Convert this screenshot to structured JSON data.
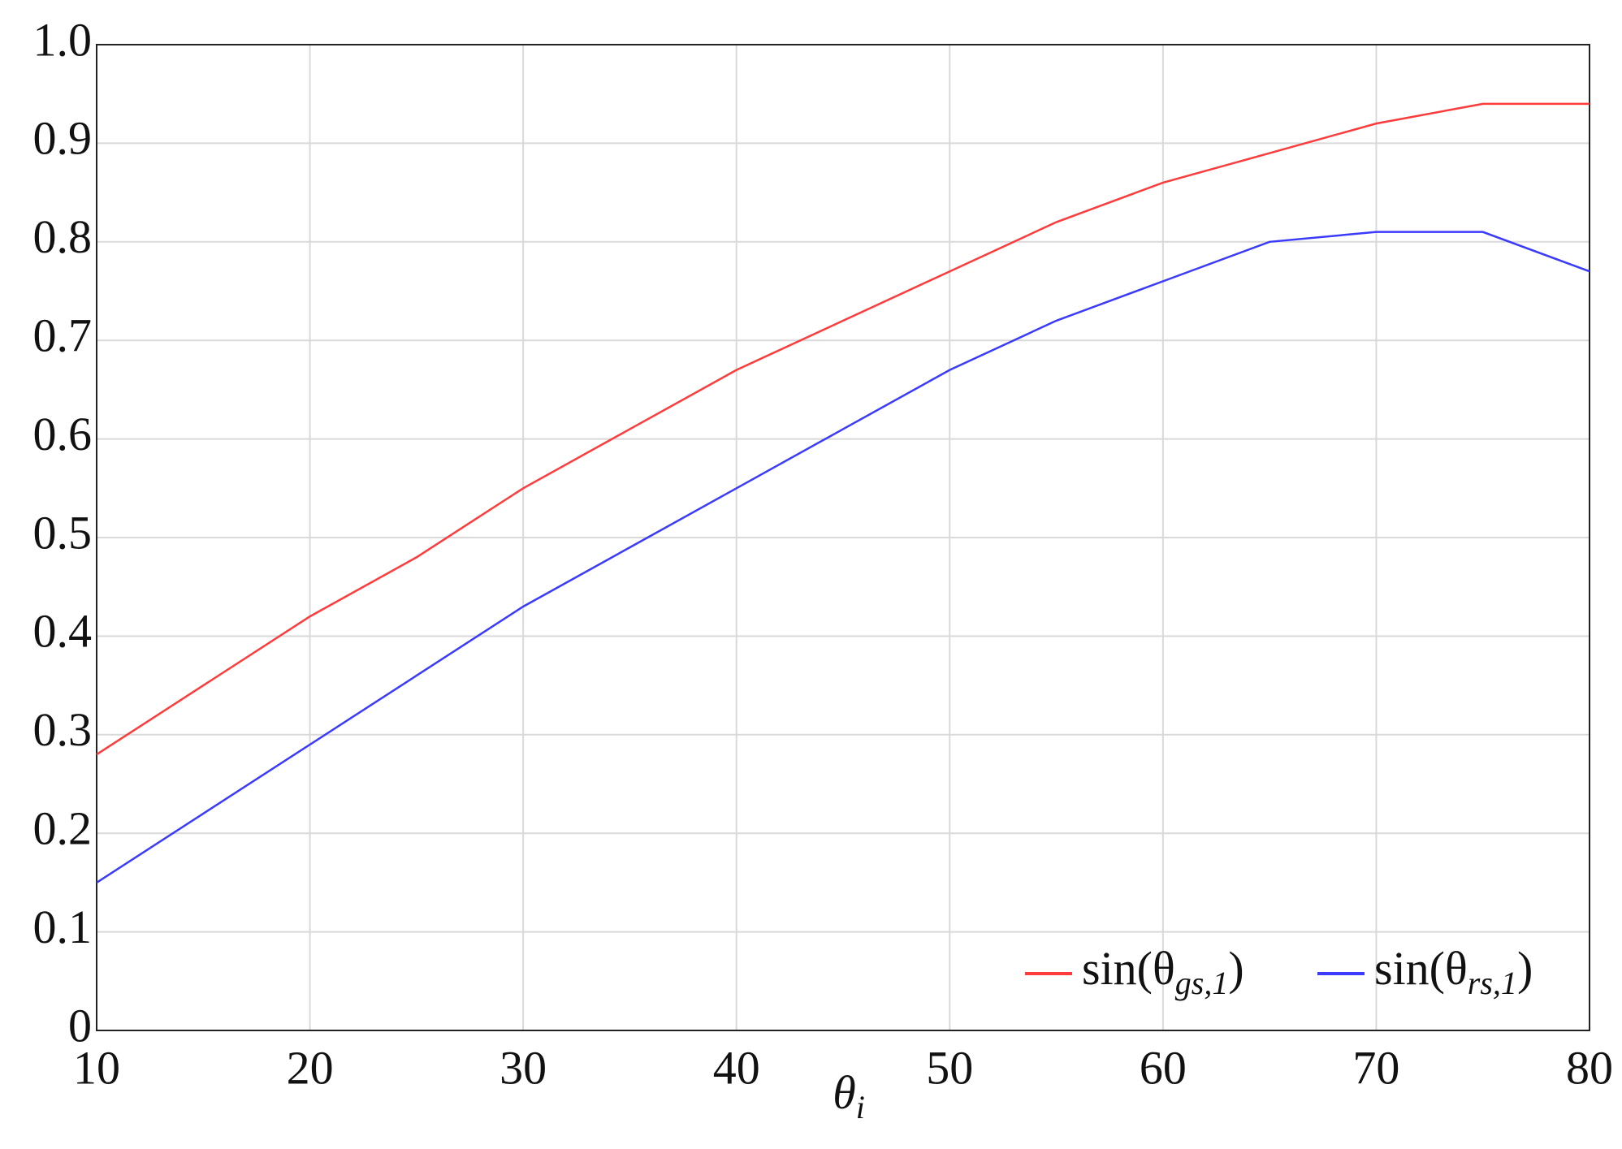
{
  "chart_data": {
    "type": "line",
    "x_label": "θi",
    "x": [
      10,
      15,
      20,
      25,
      30,
      35,
      40,
      45,
      50,
      55,
      60,
      65,
      70,
      75,
      80
    ],
    "series": [
      {
        "name": "sin(θgs,1)",
        "color": "#ff3b3b",
        "values": [
          0.28,
          0.35,
          0.42,
          0.48,
          0.55,
          0.61,
          0.67,
          0.72,
          0.77,
          0.82,
          0.86,
          0.89,
          0.92,
          0.94,
          0.94
        ]
      },
      {
        "name": "sin(θrs,1)",
        "color": "#3b3bff",
        "values": [
          0.15,
          0.22,
          0.29,
          0.36,
          0.43,
          0.49,
          0.55,
          0.61,
          0.67,
          0.72,
          0.76,
          0.8,
          0.81,
          0.81,
          0.77
        ]
      }
    ],
    "xlim": [
      10,
      80
    ],
    "xticks": [
      10,
      20,
      30,
      40,
      50,
      60,
      70,
      80
    ],
    "ylim": [
      0,
      1
    ],
    "yticks": [
      0,
      0.1,
      0.2,
      0.3,
      0.4,
      0.5,
      0.6,
      0.7,
      0.8,
      0.9,
      {
        "value": 1,
        "label": "1.0"
      }
    ],
    "grid": true,
    "legend": "lower right"
  }
}
